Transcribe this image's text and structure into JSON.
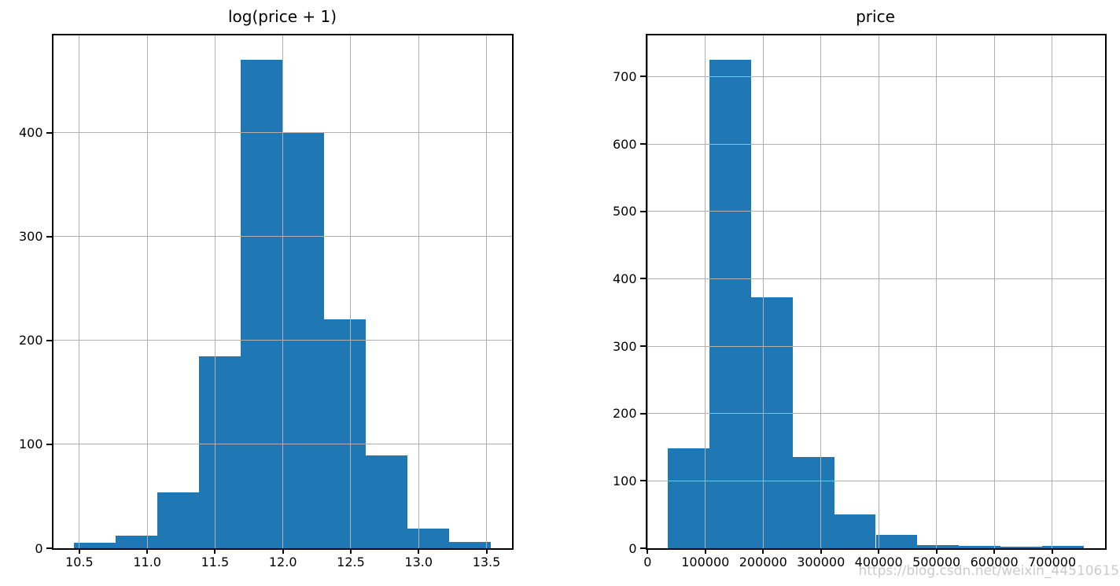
{
  "figure": {
    "background": "#ffffff"
  },
  "styles": {
    "bar_color": "#1f77b4",
    "grid_color": "#b0b0b0",
    "spine_color": "#000000",
    "tick_label_color": "#000000",
    "watermark_color": "#cbcbcb"
  },
  "watermark": {
    "text": "https://blog.csdn.net/weixin_44510615"
  },
  "chart_data": [
    {
      "type": "bar",
      "subtype": "histogram",
      "title": "log(price + 1)",
      "xlabel": "",
      "ylabel": "",
      "bin_edges": [
        10.46,
        10.768,
        11.075,
        11.383,
        11.69,
        11.997,
        12.305,
        12.612,
        12.92,
        13.227,
        13.534
      ],
      "counts": [
        5,
        12,
        54,
        185,
        470,
        400,
        220,
        89,
        19,
        6
      ],
      "xlim": [
        10.3065,
        13.6883
      ],
      "ylim": [
        0,
        493.5
      ],
      "x_ticks": [
        10.5,
        11.0,
        11.5,
        12.0,
        12.5,
        13.0,
        13.5
      ],
      "x_tick_labels": [
        "10.5",
        "11.0",
        "11.5",
        "12.0",
        "12.5",
        "13.0",
        "13.5"
      ],
      "y_ticks": [
        0,
        100,
        200,
        300,
        400
      ],
      "y_tick_labels": [
        "0",
        "100",
        "200",
        "300",
        "400"
      ],
      "grid": true,
      "grid_above_bars": true,
      "legend": null
    },
    {
      "type": "bar",
      "subtype": "histogram",
      "title": "price",
      "xlabel": "",
      "ylabel": "",
      "bin_edges": [
        34900,
        106910,
        178920,
        250930,
        322940,
        394950,
        466960,
        538970,
        610980,
        682990,
        755000
      ],
      "counts": [
        148,
        725,
        372,
        135,
        50,
        20,
        5,
        3,
        2,
        3
      ],
      "xlim": [
        -1105,
        791005
      ],
      "ylim": [
        0,
        761.25
      ],
      "x_ticks": [
        0,
        100000,
        200000,
        300000,
        400000,
        500000,
        600000,
        700000
      ],
      "x_tick_labels": [
        "0",
        "100000",
        "200000",
        "300000",
        "400000",
        "500000",
        "600000",
        "700000"
      ],
      "y_ticks": [
        0,
        100,
        200,
        300,
        400,
        500,
        600,
        700
      ],
      "y_tick_labels": [
        "0",
        "100",
        "200",
        "300",
        "400",
        "500",
        "600",
        "700"
      ],
      "grid": true,
      "grid_above_bars": true,
      "legend": null
    }
  ]
}
